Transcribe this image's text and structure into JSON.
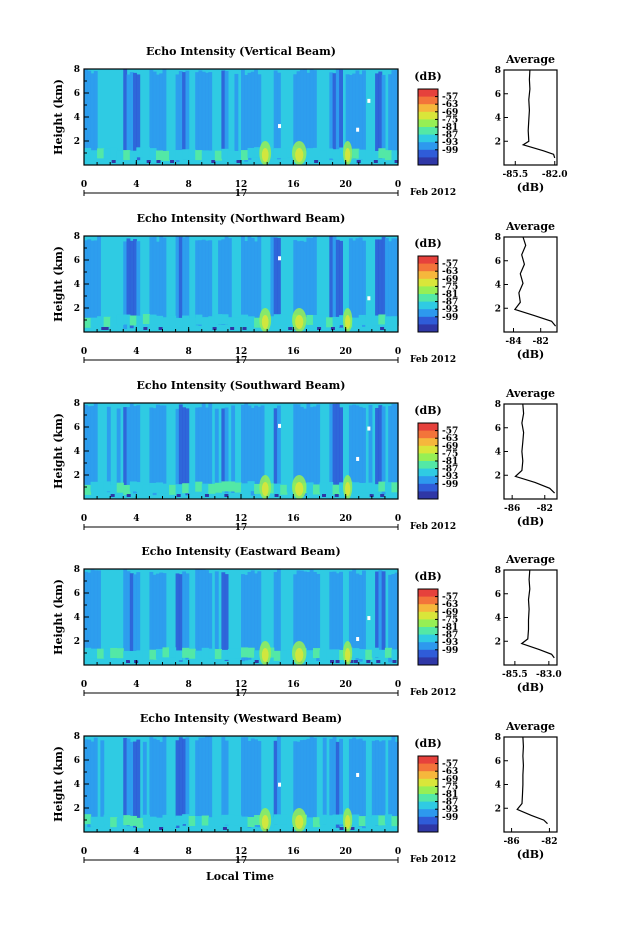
{
  "page": {
    "xlabel": "Local Time",
    "date_label": "Feb 2012",
    "day_label": "17"
  },
  "colorbar": {
    "unit": "(dB)",
    "ticks": [
      "-57",
      "-63",
      "-69",
      "-75",
      "-81",
      "-87",
      "-93",
      "-99"
    ],
    "colors": [
      "#e6413c",
      "#f3743a",
      "#f6b73c",
      "#d9e63a",
      "#96ef55",
      "#53e8a6",
      "#2fcbe3",
      "#2d99ee",
      "#2f5cd8",
      "#2f37a6"
    ]
  },
  "chart_data": [
    {
      "type": "heatmap",
      "title": "Echo Intensity (Vertical Beam)",
      "ylabel": "Height (km)",
      "xticks": [
        "0",
        "4",
        "8",
        "12",
        "16",
        "20",
        "0"
      ],
      "yticks": [
        "2",
        "4",
        "6",
        "8"
      ],
      "xlim": [
        0,
        24
      ],
      "ylim": [
        0,
        8
      ],
      "profile": {
        "title": "Average",
        "xlabel": "(dB)",
        "xticks": [
          "-85.5",
          "-82.0"
        ],
        "xlim": [
          -86.5,
          -81.8
        ],
        "yticks": [
          "2",
          "4",
          "6",
          "8"
        ],
        "ylim": [
          0,
          8
        ],
        "points": [
          [
            -84.2,
            8
          ],
          [
            -84.25,
            7.2
          ],
          [
            -84.2,
            6.4
          ],
          [
            -84.3,
            5.5
          ],
          [
            -84.25,
            4.6
          ],
          [
            -84.3,
            3.8
          ],
          [
            -84.35,
            2.9
          ],
          [
            -84.3,
            2.0
          ],
          [
            -84.8,
            1.7
          ],
          [
            -83.0,
            1.2
          ],
          [
            -82.1,
            0.9
          ],
          [
            -82.0,
            0.6
          ]
        ]
      }
    },
    {
      "type": "heatmap",
      "title": "Echo Intensity (Northward Beam)",
      "ylabel": "Height (km)",
      "xticks": [
        "0",
        "4",
        "8",
        "12",
        "16",
        "20",
        "0"
      ],
      "yticks": [
        "2",
        "4",
        "6",
        "8"
      ],
      "xlim": [
        0,
        24
      ],
      "ylim": [
        0,
        8
      ],
      "profile": {
        "title": "Average",
        "xlabel": "(dB)",
        "xticks": [
          "-84",
          "-82"
        ],
        "xlim": [
          -84.7,
          -80.8
        ],
        "yticks": [
          "2",
          "4",
          "6",
          "8"
        ],
        "ylim": [
          0,
          8
        ],
        "points": [
          [
            -83.3,
            8
          ],
          [
            -83.1,
            7.3
          ],
          [
            -83.4,
            6.5
          ],
          [
            -83.2,
            5.7
          ],
          [
            -83.5,
            4.9
          ],
          [
            -83.3,
            4.1
          ],
          [
            -83.6,
            3.3
          ],
          [
            -83.5,
            2.5
          ],
          [
            -83.9,
            1.9
          ],
          [
            -82.5,
            1.4
          ],
          [
            -81.2,
            0.9
          ],
          [
            -80.9,
            0.5
          ]
        ]
      }
    },
    {
      "type": "heatmap",
      "title": "Echo Intensity (Southward Beam)",
      "ylabel": "Height (km)",
      "xticks": [
        "0",
        "4",
        "8",
        "12",
        "16",
        "20",
        "0"
      ],
      "yticks": [
        "2",
        "4",
        "6",
        "8"
      ],
      "xlim": [
        0,
        24
      ],
      "ylim": [
        0,
        8
      ],
      "profile": {
        "title": "Average",
        "xlabel": "(dB)",
        "xticks": [
          "-86",
          "-82"
        ],
        "xlim": [
          -87,
          -80.5
        ],
        "yticks": [
          "2",
          "4",
          "6",
          "8"
        ],
        "ylim": [
          0,
          8
        ],
        "points": [
          [
            -84.7,
            8
          ],
          [
            -84.6,
            7.2
          ],
          [
            -84.8,
            6.4
          ],
          [
            -84.6,
            5.6
          ],
          [
            -84.7,
            4.8
          ],
          [
            -84.8,
            4.0
          ],
          [
            -84.7,
            3.2
          ],
          [
            -84.8,
            2.4
          ],
          [
            -85.6,
            1.9
          ],
          [
            -83.2,
            1.4
          ],
          [
            -81.4,
            0.9
          ],
          [
            -80.8,
            0.5
          ]
        ]
      }
    },
    {
      "type": "heatmap",
      "title": "Echo Intensity (Eastward Beam)",
      "ylabel": "Height (km)",
      "xticks": [
        "0",
        "4",
        "8",
        "12",
        "16",
        "20",
        "0"
      ],
      "yticks": [
        "2",
        "4",
        "6",
        "8"
      ],
      "xlim": [
        0,
        24
      ],
      "ylim": [
        0,
        8
      ],
      "profile": {
        "title": "Average",
        "xlabel": "(dB)",
        "xticks": [
          "-85.5",
          "-83.0"
        ],
        "xlim": [
          -86.3,
          -82.4
        ],
        "yticks": [
          "2",
          "4",
          "6",
          "8"
        ],
        "ylim": [
          0,
          8
        ],
        "points": [
          [
            -84.4,
            8
          ],
          [
            -84.45,
            7.2
          ],
          [
            -84.4,
            6.4
          ],
          [
            -84.5,
            5.5
          ],
          [
            -84.45,
            4.7
          ],
          [
            -84.5,
            3.8
          ],
          [
            -84.5,
            3.0
          ],
          [
            -84.55,
            2.2
          ],
          [
            -85.0,
            1.8
          ],
          [
            -83.7,
            1.3
          ],
          [
            -82.8,
            0.9
          ],
          [
            -82.6,
            0.6
          ]
        ]
      }
    },
    {
      "type": "heatmap",
      "title": "Echo Intensity (Westward Beam)",
      "ylabel": "Height (km)",
      "xticks": [
        "0",
        "4",
        "8",
        "12",
        "16",
        "20",
        "0"
      ],
      "yticks": [
        "2",
        "4",
        "6",
        "8"
      ],
      "xlim": [
        0,
        24
      ],
      "ylim": [
        0,
        8
      ],
      "profile": {
        "title": "Average",
        "xlabel": "(dB)",
        "xticks": [
          "-86",
          "-82"
        ],
        "xlim": [
          -86.8,
          -81.2
        ],
        "yticks": [
          "2",
          "4",
          "6",
          "8"
        ],
        "ylim": [
          0,
          8
        ],
        "points": [
          [
            -84.8,
            8
          ],
          [
            -84.75,
            7.2
          ],
          [
            -84.8,
            6.4
          ],
          [
            -84.75,
            5.6
          ],
          [
            -84.8,
            4.8
          ],
          [
            -84.8,
            4.0
          ],
          [
            -84.85,
            3.2
          ],
          [
            -84.9,
            2.4
          ],
          [
            -85.4,
            1.9
          ],
          [
            -83.9,
            1.4
          ],
          [
            -82.6,
            1.0
          ],
          [
            -82.2,
            0.7
          ]
        ]
      }
    }
  ]
}
